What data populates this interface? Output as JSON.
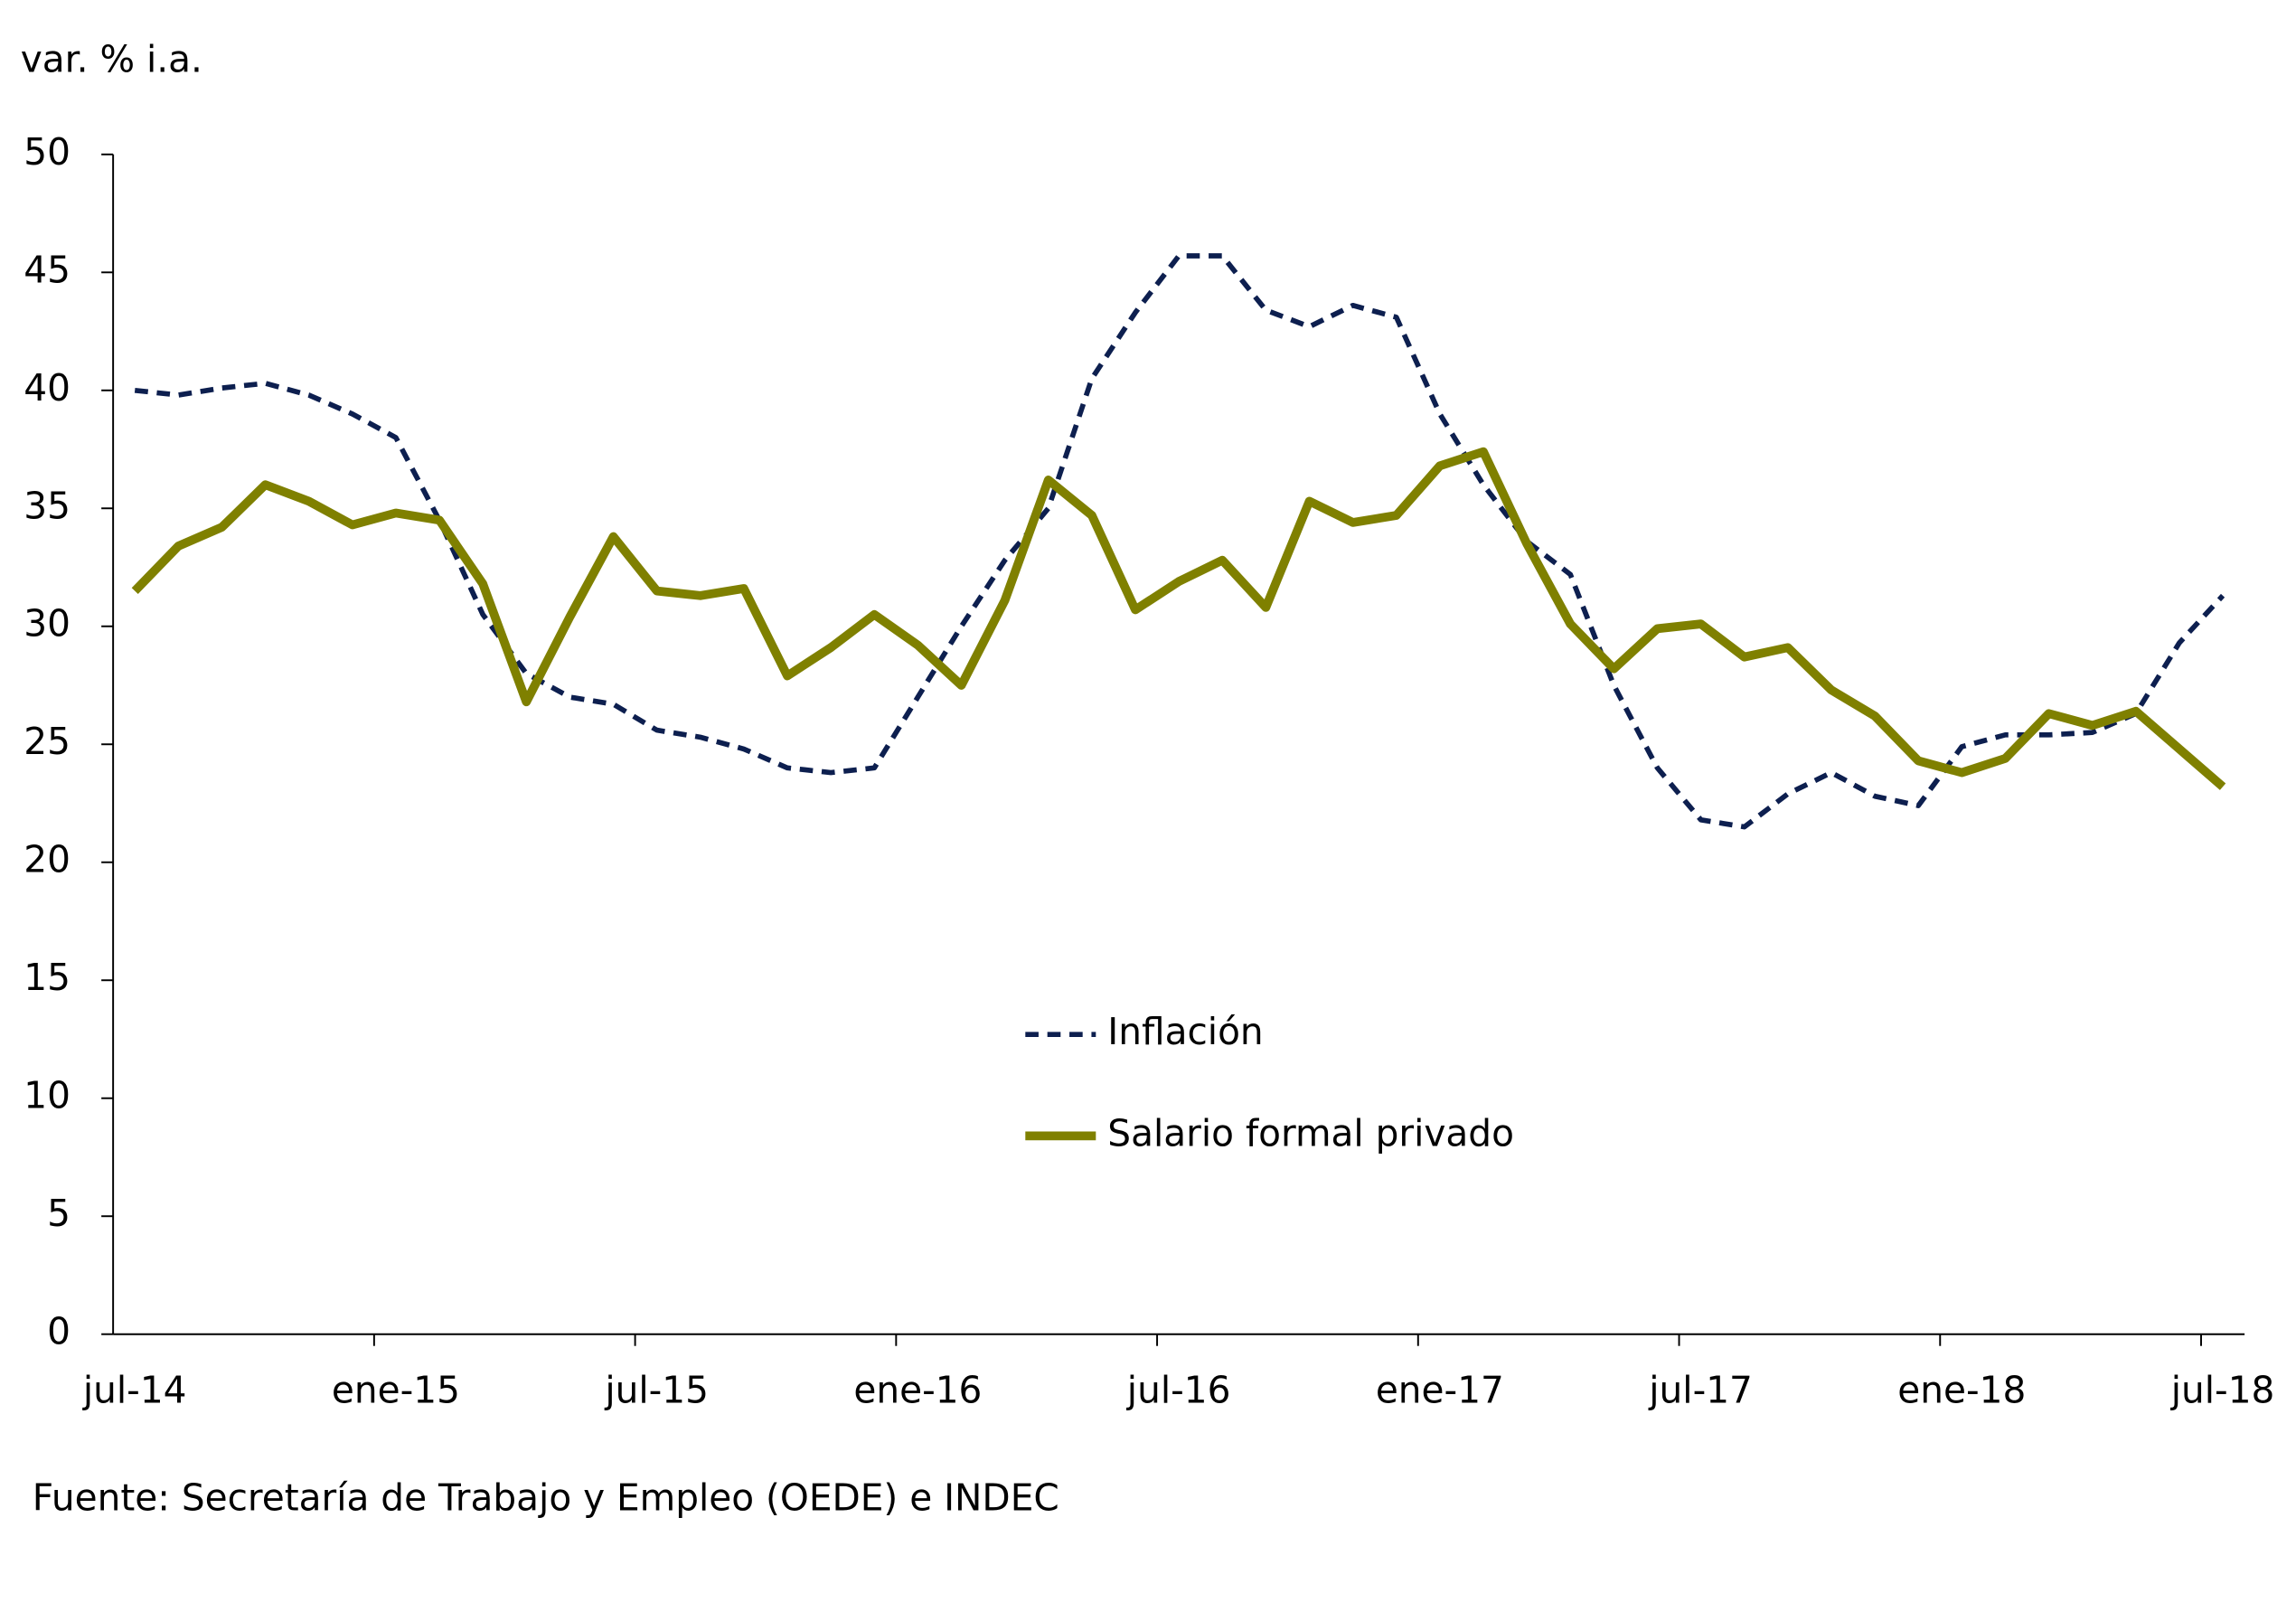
{
  "chart_data": {
    "type": "line",
    "y_label": "var. % i.a.",
    "source": "Fuente: Secretaría de Trabajo y Empleo (OEDE) e INDEC",
    "categories": [
      "jul-14",
      null,
      null,
      null,
      null,
      null,
      "ene-15",
      null,
      null,
      null,
      null,
      null,
      "jul-15",
      null,
      null,
      null,
      null,
      null,
      "ene-16",
      null,
      null,
      null,
      null,
      null,
      "jul-16",
      null,
      null,
      null,
      null,
      null,
      "ene-17",
      null,
      null,
      null,
      null,
      null,
      "jul-17",
      null,
      null,
      null,
      null,
      null,
      "ene-18",
      null,
      null,
      null,
      null,
      null,
      "jul-18"
    ],
    "series": [
      {
        "name": "Inflación",
        "color": "#0d1f4f",
        "dash": true,
        "values": [
          40,
          39.8,
          40.1,
          40.3,
          39.8,
          39.0,
          38.0,
          34.5,
          30.5,
          28.0,
          27.0,
          26.7,
          25.6,
          25.3,
          24.8,
          24.0,
          23.8,
          24.0,
          27.0,
          30.0,
          32.8,
          35.0,
          40.5,
          43.3,
          45.7,
          45.7,
          43.4,
          42.7,
          43.6,
          43.1,
          39.0,
          36.0,
          33.6,
          32.2,
          27.5,
          24.0,
          21.8,
          21.5,
          22.9,
          23.8,
          22.8,
          22.4,
          24.9,
          25.4,
          25.4,
          25.5,
          26.3,
          29.3,
          31.3
        ]
      },
      {
        "name": "Salario formal privado",
        "color": "#7f8000",
        "dash": false,
        "values": [
          31.5,
          33.4,
          34.2,
          36.0,
          35.3,
          34.3,
          34.8,
          34.5,
          31.8,
          26.8,
          30.4,
          33.8,
          31.5,
          31.3,
          31.6,
          27.9,
          29.1,
          30.5,
          29.2,
          27.5,
          31.1,
          36.2,
          34.7,
          30.7,
          31.9,
          32.8,
          30.8,
          35.3,
          34.4,
          34.7,
          36.8,
          37.4,
          33.5,
          30.1,
          28.2,
          29.9,
          30.1,
          28.7,
          29.1,
          27.3,
          26.2,
          24.3,
          23.8,
          24.4,
          26.3,
          25.8,
          26.4,
          24.8,
          23.2
        ]
      }
    ],
    "ylim": [
      0,
      50
    ],
    "yticks": [
      0,
      5,
      10,
      15,
      20,
      25,
      30,
      35,
      40,
      45,
      50
    ],
    "legend": "center"
  }
}
